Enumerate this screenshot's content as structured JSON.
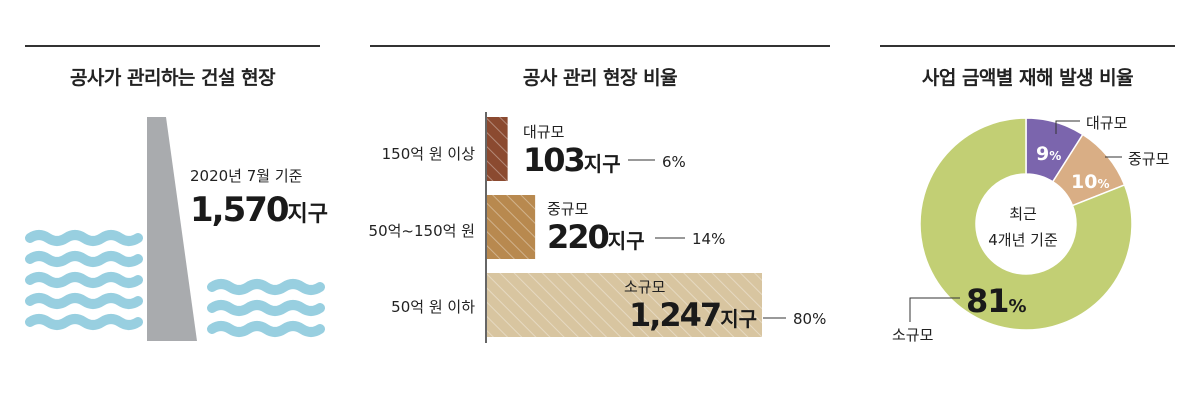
{
  "panel1": {
    "title": "공사가 관리하는 건설 현장",
    "basis": "2020년 7월 기준",
    "count": "1,570",
    "unit": "지구",
    "colors": {
      "wall": "#a9abae",
      "water": "#98cfe0"
    }
  },
  "panel2": {
    "title": "공사 관리 현장 비율",
    "colors": {
      "large": "#8b4a30",
      "medium": "#b8894f",
      "small": "#d8c5a0"
    },
    "rows": [
      {
        "category": "150억 원 이상",
        "size_label": "대규모",
        "count": "103",
        "unit": "지구",
        "percent": "6%"
      },
      {
        "category": "50억~150억 원",
        "size_label": "중규모",
        "count": "220",
        "unit": "지구",
        "percent": "14%"
      },
      {
        "category": "50억 원 이하",
        "size_label": "소규모",
        "count": "1,247",
        "unit": "지구",
        "percent": "80%"
      }
    ]
  },
  "panel3": {
    "title": "사업 금액별 재해 발생 비율",
    "center_line1": "최근",
    "center_line2": "4개년 기준",
    "colors": {
      "large": "#7b65ad",
      "medium": "#d9ae85",
      "small": "#c2cf74"
    },
    "slices": [
      {
        "label": "대규모",
        "value": 9,
        "value_text": "9",
        "pct_sign": "%"
      },
      {
        "label": "중규모",
        "value": 10,
        "value_text": "10",
        "pct_sign": "%"
      },
      {
        "label": "소규모",
        "value": 81,
        "value_text": "81",
        "pct_sign": "%"
      }
    ]
  },
  "chart_data": [
    {
      "type": "other",
      "title": "공사가 관리하는 건설 현장",
      "basis": "2020년 7월 기준",
      "value": 1570,
      "unit": "지구"
    },
    {
      "type": "bar",
      "title": "공사 관리 현장 비율",
      "categories": [
        "150억 원 이상",
        "50억~150억 원",
        "50억 원 이하"
      ],
      "series_labels": [
        "대규모",
        "중규모",
        "소규모"
      ],
      "values": [
        103,
        220,
        1247
      ],
      "percent": [
        6,
        14,
        80
      ],
      "unit": "지구"
    },
    {
      "type": "pie",
      "title": "사업 금액별 재해 발생 비율",
      "note": "최근 4개년 기준",
      "labels": [
        "대규모",
        "중규모",
        "소규모"
      ],
      "values": [
        9,
        10,
        81
      ]
    }
  ]
}
